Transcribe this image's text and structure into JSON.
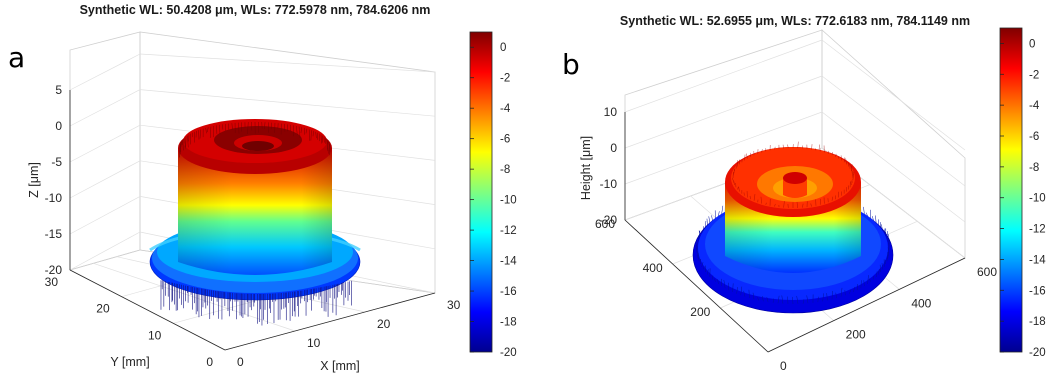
{
  "figure": {
    "colors": {
      "grid": "#d9d9d9",
      "box": "#bfbfbf",
      "text": "#262626"
    },
    "colormap": "jet"
  },
  "chart_data": [
    {
      "type": "surface3d",
      "panel_label": "a",
      "title": "Synthetic WL: 50.4208 μm, WLs: 772.5978 nm, 784.6206 nm",
      "xlabel": "X [mm]",
      "ylabel": "Y [mm]",
      "zlabel": "Z [μm]",
      "xlim": [
        0,
        30
      ],
      "ylim": [
        0,
        30
      ],
      "zlim": [
        -20,
        5
      ],
      "xticks": [
        "0",
        "10",
        "20",
        "30"
      ],
      "yticks": [
        "0",
        "10",
        "20",
        "30"
      ],
      "zticks": [
        "-20",
        "-15",
        "-10",
        "-5",
        "0",
        "5"
      ],
      "colorbar_ticks": [
        "0",
        "-2",
        "-4",
        "-6",
        "-8",
        "-10",
        "-12",
        "-14",
        "-16",
        "-18",
        "-20"
      ],
      "clim": [
        -20,
        1
      ],
      "shape": {
        "base_level": -19,
        "step_top": 0,
        "inner_ring_top": 1,
        "center_dip": -1
      }
    },
    {
      "type": "surface3d",
      "panel_label": "b",
      "title": "Synthetic WL: 52.6955 μm, WLs: 772.6183 nm, 784.1149 nm",
      "xlabel": "",
      "ylabel": "",
      "zlabel": "Height [μm]",
      "xlim": [
        0,
        600
      ],
      "ylim": [
        0,
        600
      ],
      "zlim": [
        -20,
        10
      ],
      "xticks": [
        "0",
        "200",
        "400",
        "600"
      ],
      "yticks": [
        "200",
        "400",
        "600"
      ],
      "zticks": [
        "-20",
        "-10",
        "0",
        "10"
      ],
      "colorbar_ticks": [
        "0",
        "-2",
        "-4",
        "-6",
        "-8",
        "-10",
        "-12",
        "-14",
        "-16",
        "-18",
        "-20"
      ],
      "clim": [
        -20,
        1
      ],
      "shape": {
        "base_level": -20,
        "step_top": -1,
        "inner_ring_top": -2,
        "center_dip": -1
      }
    }
  ]
}
